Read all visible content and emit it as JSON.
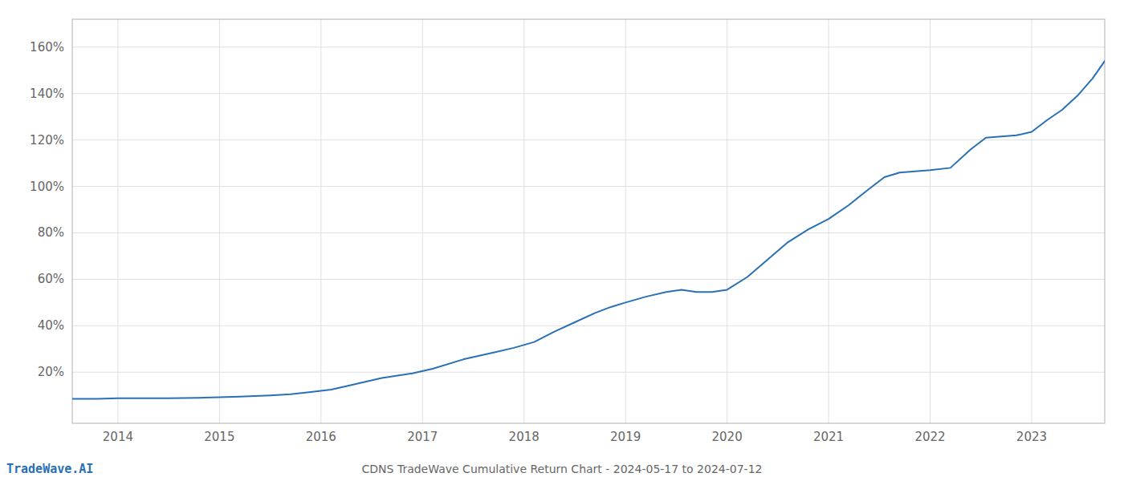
{
  "chart_data": {
    "type": "line",
    "title": "CDNS TradeWave Cumulative Return Chart - 2024-05-17 to 2024-07-12",
    "annotations": [
      "TradeWave.AI"
    ],
    "color": "#2970b5",
    "grid": true,
    "x": [
      2013.55,
      2013.8,
      2014.0,
      2014.2,
      2014.5,
      2014.8,
      2015.0,
      2015.2,
      2015.5,
      2015.7,
      2015.9,
      2016.1,
      2016.3,
      2016.6,
      2016.9,
      2017.1,
      2017.4,
      2017.7,
      2017.9,
      2018.1,
      2018.3,
      2018.5,
      2018.7,
      2018.85,
      2019.0,
      2019.2,
      2019.4,
      2019.55,
      2019.7,
      2019.85,
      2020.0,
      2020.2,
      2020.4,
      2020.6,
      2020.8,
      2021.0,
      2021.2,
      2021.4,
      2021.55,
      2021.7,
      2021.85,
      2022.0,
      2022.2,
      2022.4,
      2022.55,
      2022.7,
      2022.85,
      2023.0,
      2023.15,
      2023.3,
      2023.45,
      2023.6,
      2023.72
    ],
    "values": [
      0.085,
      0.085,
      0.088,
      0.088,
      0.088,
      0.09,
      0.092,
      0.095,
      0.1,
      0.105,
      0.115,
      0.125,
      0.145,
      0.175,
      0.195,
      0.215,
      0.255,
      0.285,
      0.305,
      0.33,
      0.375,
      0.415,
      0.455,
      0.48,
      0.5,
      0.525,
      0.545,
      0.555,
      0.545,
      0.545,
      0.555,
      0.61,
      0.685,
      0.76,
      0.815,
      0.86,
      0.92,
      0.99,
      1.04,
      1.06,
      1.065,
      1.07,
      1.08,
      1.16,
      1.21,
      1.215,
      1.22,
      1.235,
      1.285,
      1.33,
      1.39,
      1.465,
      1.54
    ],
    "xlim": [
      2013.55,
      2023.72
    ],
    "xticks": [
      2014,
      2015,
      2016,
      2017,
      2018,
      2019,
      2020,
      2021,
      2022,
      2023
    ],
    "ylim": [
      -0.02,
      1.72
    ],
    "yticks": [
      {
        "value": 0.2,
        "label": "20%"
      },
      {
        "value": 0.4,
        "label": "40%"
      },
      {
        "value": 0.6,
        "label": "60%"
      },
      {
        "value": 0.8,
        "label": "80%"
      },
      {
        "value": 1.0,
        "label": "100%"
      },
      {
        "value": 1.2,
        "label": "120%"
      },
      {
        "value": 1.4,
        "label": "140%"
      },
      {
        "value": 1.6,
        "label": "160%"
      }
    ]
  }
}
